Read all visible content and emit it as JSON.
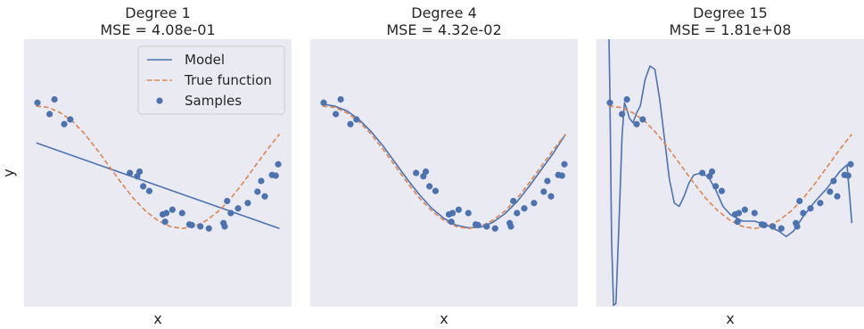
{
  "chart_data": [
    {
      "type": "line",
      "title": "Degree 1",
      "subtitle": "MSE = 4.08e-01",
      "xlabel": "x",
      "ylabel": "y",
      "xlim": [
        -0.05,
        1.05
      ],
      "ylim": [
        -2,
        2
      ],
      "grid": false,
      "legend": {
        "placement": "top-right",
        "entries": [
          "Model",
          "True function",
          "Samples"
        ]
      },
      "colors": {
        "model": "#4c72b0",
        "true_function": "#dd8452",
        "samples": "#4c72b0",
        "background": "#eaeaf2"
      },
      "series": [
        {
          "name": "Model",
          "style": "solid",
          "x": [
            0,
            0.25,
            0.5,
            0.75,
            1.0
          ],
          "y": [
            0.45,
            0.13,
            -0.19,
            -0.51,
            -0.83
          ]
        },
        {
          "name": "True function",
          "style": "dashed",
          "x": [
            0,
            0.05,
            0.1,
            0.15,
            0.2,
            0.25,
            0.3,
            0.35,
            0.4,
            0.45,
            0.5,
            0.55,
            0.6,
            0.65,
            0.7,
            0.75,
            0.8,
            0.85,
            0.9,
            0.95,
            1.0
          ],
          "y": [
            1.0,
            0.98,
            0.9,
            0.77,
            0.58,
            0.35,
            0.1,
            -0.15,
            -0.38,
            -0.57,
            -0.71,
            -0.8,
            -0.83,
            -0.8,
            -0.71,
            -0.57,
            -0.38,
            -0.15,
            0.1,
            0.35,
            0.58
          ]
        },
        {
          "name": "Samples",
          "style": "scatter",
          "x": [
            0.005,
            0.055,
            0.075,
            0.115,
            0.14,
            0.385,
            0.415,
            0.425,
            0.44,
            0.465,
            0.52,
            0.53,
            0.535,
            0.56,
            0.6,
            0.63,
            0.64,
            0.675,
            0.71,
            0.77,
            0.775,
            0.785,
            0.8,
            0.83,
            0.87,
            0.91,
            0.925,
            0.94,
            0.97,
            0.985,
            0.995
          ],
          "y": [
            1.05,
            0.88,
            1.1,
            0.73,
            0.8,
            0.0,
            -0.05,
            0.02,
            -0.2,
            -0.27,
            -0.62,
            -0.73,
            -0.6,
            -0.55,
            -0.6,
            -0.77,
            -0.78,
            -0.8,
            -0.83,
            -0.75,
            -0.8,
            -0.42,
            -0.6,
            -0.53,
            -0.45,
            -0.28,
            -0.12,
            -0.35,
            -0.03,
            -0.04,
            0.13
          ]
        }
      ]
    },
    {
      "type": "line",
      "title": "Degree 4",
      "subtitle": "MSE = 4.32e-02",
      "xlabel": "x",
      "xlim": [
        -0.05,
        1.05
      ],
      "ylim": [
        -2,
        2
      ],
      "grid": false,
      "colors": {
        "model": "#4c72b0",
        "true_function": "#dd8452",
        "samples": "#4c72b0",
        "background": "#eaeaf2"
      },
      "series": [
        {
          "name": "Model",
          "style": "solid",
          "x": [
            0,
            0.05,
            0.1,
            0.15,
            0.2,
            0.25,
            0.3,
            0.35,
            0.4,
            0.45,
            0.5,
            0.55,
            0.6,
            0.65,
            0.7,
            0.75,
            0.8,
            0.85,
            0.9,
            0.95,
            1.0
          ],
          "y": [
            1.03,
            1.0,
            0.93,
            0.8,
            0.62,
            0.4,
            0.15,
            -0.1,
            -0.33,
            -0.53,
            -0.68,
            -0.78,
            -0.82,
            -0.81,
            -0.74,
            -0.61,
            -0.43,
            -0.2,
            0.05,
            0.3,
            0.58
          ]
        },
        {
          "name": "True function",
          "style": "dashed",
          "x": [
            0,
            0.05,
            0.1,
            0.15,
            0.2,
            0.25,
            0.3,
            0.35,
            0.4,
            0.45,
            0.5,
            0.55,
            0.6,
            0.65,
            0.7,
            0.75,
            0.8,
            0.85,
            0.9,
            0.95,
            1.0
          ],
          "y": [
            1.0,
            0.98,
            0.9,
            0.77,
            0.58,
            0.35,
            0.1,
            -0.15,
            -0.38,
            -0.57,
            -0.71,
            -0.8,
            -0.83,
            -0.8,
            -0.71,
            -0.57,
            -0.38,
            -0.15,
            0.1,
            0.35,
            0.58
          ]
        },
        {
          "name": "Samples",
          "style": "scatter",
          "x": [
            0.005,
            0.055,
            0.075,
            0.115,
            0.14,
            0.385,
            0.415,
            0.425,
            0.44,
            0.465,
            0.52,
            0.53,
            0.535,
            0.56,
            0.6,
            0.63,
            0.64,
            0.675,
            0.71,
            0.77,
            0.775,
            0.785,
            0.8,
            0.83,
            0.87,
            0.91,
            0.925,
            0.94,
            0.97,
            0.985,
            0.995
          ],
          "y": [
            1.05,
            0.88,
            1.1,
            0.73,
            0.8,
            0.0,
            -0.05,
            0.02,
            -0.2,
            -0.27,
            -0.62,
            -0.73,
            -0.6,
            -0.55,
            -0.6,
            -0.77,
            -0.78,
            -0.8,
            -0.83,
            -0.75,
            -0.8,
            -0.42,
            -0.6,
            -0.53,
            -0.45,
            -0.28,
            -0.12,
            -0.35,
            -0.03,
            -0.04,
            0.13
          ]
        }
      ]
    },
    {
      "type": "line",
      "title": "Degree 15",
      "subtitle": "MSE = 1.81e+08",
      "xlabel": "x",
      "xlim": [
        -0.05,
        1.05
      ],
      "ylim": [
        -2,
        2
      ],
      "grid": false,
      "colors": {
        "model": "#4c72b0",
        "true_function": "#dd8452",
        "samples": "#4c72b0",
        "background": "#eaeaf2"
      },
      "series": [
        {
          "name": "Model",
          "style": "solid",
          "x": [
            0.0,
            0.005,
            0.012,
            0.02,
            0.03,
            0.045,
            0.055,
            0.065,
            0.075,
            0.085,
            0.1,
            0.115,
            0.13,
            0.15,
            0.17,
            0.19,
            0.21,
            0.23,
            0.25,
            0.27,
            0.29,
            0.31,
            0.33,
            0.35,
            0.38,
            0.41,
            0.44,
            0.47,
            0.5,
            0.55,
            0.6,
            0.65,
            0.7,
            0.73,
            0.76,
            0.8,
            0.85,
            0.9,
            0.95,
            0.98,
            0.99,
            1.0
          ],
          "y": [
            2.3,
            1.2,
            -1.0,
            -1.98,
            -1.95,
            -0.5,
            0.55,
            1.05,
            0.95,
            0.82,
            0.75,
            0.9,
            1.0,
            1.4,
            1.6,
            1.55,
            1.1,
            0.5,
            -0.1,
            -0.45,
            -0.5,
            -0.35,
            -0.15,
            -0.03,
            0.0,
            -0.06,
            -0.25,
            -0.5,
            -0.62,
            -0.72,
            -0.72,
            -0.78,
            -0.87,
            -0.95,
            -0.87,
            -0.65,
            -0.42,
            -0.22,
            0.02,
            0.12,
            -0.3,
            -0.75
          ]
        },
        {
          "name": "True function",
          "style": "dashed",
          "x": [
            0,
            0.05,
            0.1,
            0.15,
            0.2,
            0.25,
            0.3,
            0.35,
            0.4,
            0.45,
            0.5,
            0.55,
            0.6,
            0.65,
            0.7,
            0.75,
            0.8,
            0.85,
            0.9,
            0.95,
            1.0
          ],
          "y": [
            1.0,
            0.98,
            0.9,
            0.77,
            0.58,
            0.35,
            0.1,
            -0.15,
            -0.38,
            -0.57,
            -0.71,
            -0.8,
            -0.83,
            -0.8,
            -0.71,
            -0.57,
            -0.38,
            -0.15,
            0.1,
            0.35,
            0.58
          ]
        },
        {
          "name": "Samples",
          "style": "scatter",
          "x": [
            0.005,
            0.055,
            0.075,
            0.115,
            0.14,
            0.385,
            0.415,
            0.425,
            0.44,
            0.465,
            0.52,
            0.53,
            0.535,
            0.56,
            0.6,
            0.63,
            0.64,
            0.675,
            0.71,
            0.77,
            0.775,
            0.785,
            0.8,
            0.83,
            0.87,
            0.91,
            0.925,
            0.94,
            0.97,
            0.985,
            0.995
          ],
          "y": [
            1.05,
            0.88,
            1.1,
            0.73,
            0.8,
            0.0,
            -0.05,
            0.02,
            -0.2,
            -0.27,
            -0.62,
            -0.73,
            -0.6,
            -0.55,
            -0.6,
            -0.77,
            -0.78,
            -0.8,
            -0.83,
            -0.75,
            -0.8,
            -0.42,
            -0.6,
            -0.53,
            -0.45,
            -0.28,
            -0.12,
            -0.35,
            -0.03,
            -0.04,
            0.13
          ]
        }
      ]
    }
  ]
}
